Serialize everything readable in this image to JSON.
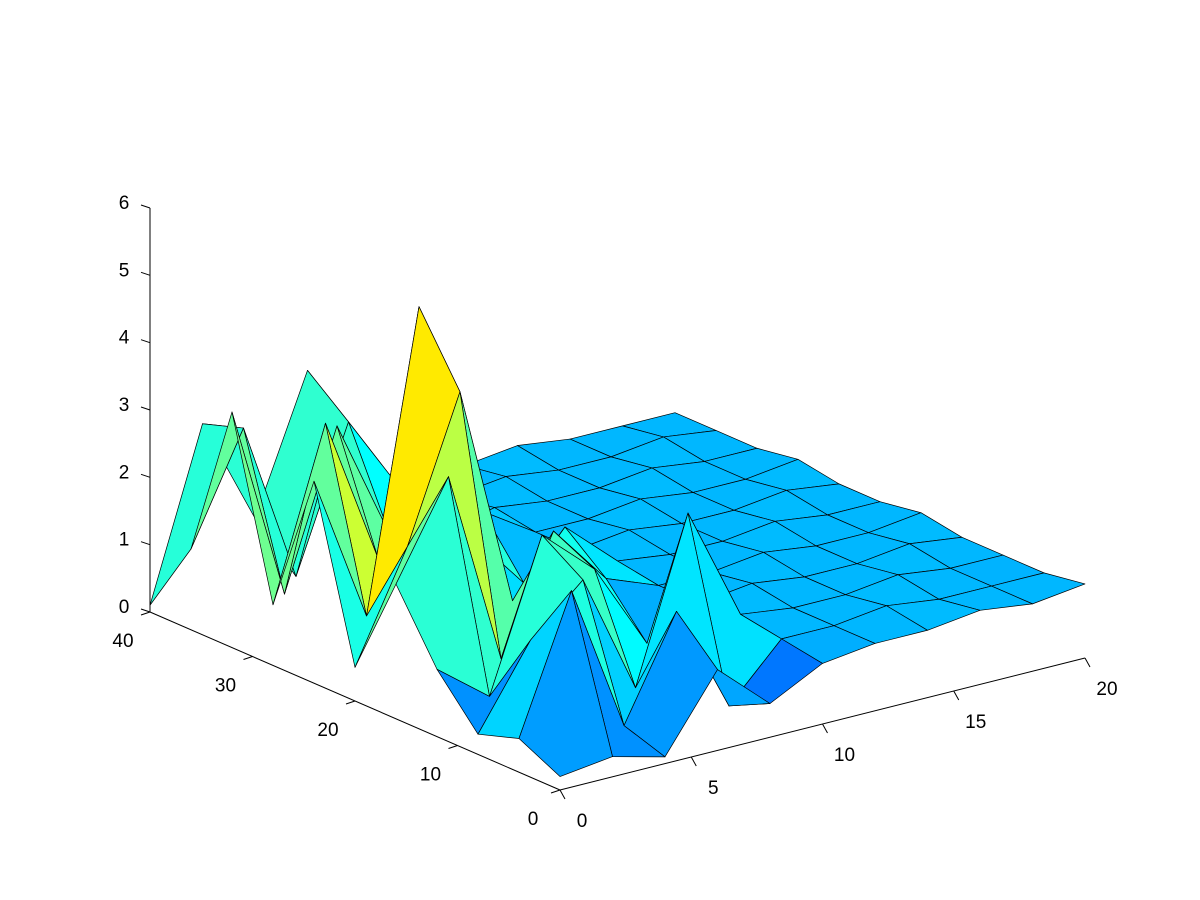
{
  "chart_data": {
    "type": "surface",
    "colormap": "jet",
    "x": [
      0,
      2,
      4,
      6,
      8,
      10,
      12,
      14,
      16,
      18,
      20
    ],
    "y": [
      0,
      4,
      8,
      12,
      16,
      20,
      24,
      28,
      32,
      36,
      40
    ],
    "z": [
      [
        0.2,
        0.3,
        0.1,
        1.2,
        0.5,
        0.9,
        1.0,
        1.0,
        1.1,
        1.0,
        1.1
      ],
      [
        0.5,
        2.5,
        0.3,
        1.8,
        0.2,
        1.0,
        1.0,
        1.1,
        1.0,
        1.0,
        1.0
      ],
      [
        0.3,
        1.5,
        2.2,
        0.4,
        2.8,
        1.1,
        1.0,
        1.0,
        1.1,
        1.0,
        1.0
      ],
      [
        1.0,
        0.4,
        2.6,
        1.9,
        0.6,
        1.0,
        1.1,
        1.0,
        1.0,
        1.1,
        1.0
      ],
      [
        2.0,
        3.4,
        0.5,
        2.2,
        1.3,
        1.0,
        1.0,
        1.1,
        1.0,
        1.0,
        1.1
      ],
      [
        0.5,
        2.1,
        4.2,
        0.9,
        1.8,
        1.1,
        1.0,
        1.0,
        1.1,
        1.0,
        1.0
      ],
      [
        3.0,
        0.8,
        5.2,
        1.6,
        0.7,
        1.0,
        1.1,
        1.0,
        1.0,
        1.1,
        1.0
      ],
      [
        0.9,
        3.4,
        1.2,
        2.8,
        1.5,
        1.0,
        1.0,
        1.1,
        1.0,
        1.0,
        1.1
      ],
      [
        3.5,
        0.6,
        2.9,
        1.1,
        0.9,
        1.1,
        1.0,
        1.0,
        1.1,
        1.0,
        1.0
      ],
      [
        1.2,
        2.8,
        0.4,
        2.5,
        1.3,
        1.0,
        1.1,
        1.0,
        1.0,
        1.1,
        1.0
      ],
      [
        0.1,
        2.6,
        1.0,
        3.0,
        1.1,
        1.0,
        1.0,
        1.1,
        1.0,
        1.0,
        1.0
      ]
    ],
    "xlim": [
      0,
      20
    ],
    "xticks": [
      0,
      5,
      10,
      15,
      20
    ],
    "ylim": [
      0,
      40
    ],
    "yticks": [
      0,
      10,
      20,
      30,
      40
    ],
    "zlim": [
      0,
      6
    ],
    "zticks": [
      0,
      1,
      2,
      3,
      4,
      5,
      6
    ],
    "edge_color": "#000000"
  }
}
